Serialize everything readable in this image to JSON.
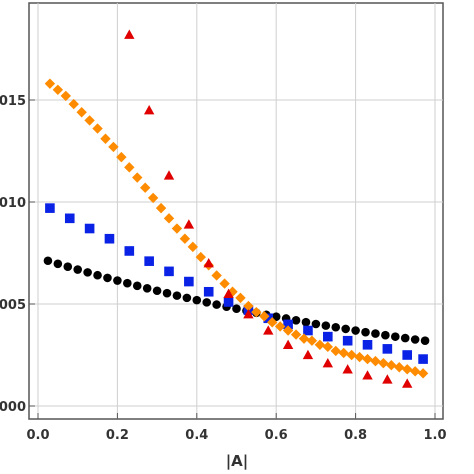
{
  "chart_data": {
    "type": "scatter",
    "title": "",
    "xlabel": "|A|",
    "ylabel": "",
    "xlim": [
      0,
      1.0
    ],
    "ylim": [
      0.0,
      0.0195
    ],
    "grid": true,
    "x_ticks": [
      {
        "value": 0.0,
        "label": "0.0"
      },
      {
        "value": 0.2,
        "label": "0.2"
      },
      {
        "value": 0.4,
        "label": "0.4"
      },
      {
        "value": 0.6,
        "label": "0.6"
      },
      {
        "value": 0.8,
        "label": "0.8"
      },
      {
        "value": 1.0,
        "label": "1.0"
      }
    ],
    "y_ticks": [
      {
        "value": 0.0,
        "label": "000"
      },
      {
        "value": 0.005,
        "label": "005"
      },
      {
        "value": 0.01,
        "label": "010"
      },
      {
        "value": 0.015,
        "label": "015"
      }
    ],
    "series": [
      {
        "marker": "circle",
        "color": "#000000",
        "x": [
          0.025,
          0.05,
          0.075,
          0.1,
          0.125,
          0.15,
          0.175,
          0.2,
          0.225,
          0.25,
          0.275,
          0.3,
          0.325,
          0.35,
          0.375,
          0.4,
          0.425,
          0.45,
          0.475,
          0.5,
          0.525,
          0.55,
          0.575,
          0.6,
          0.625,
          0.65,
          0.675,
          0.7,
          0.725,
          0.75,
          0.775,
          0.8,
          0.825,
          0.85,
          0.875,
          0.9,
          0.925,
          0.95,
          0.975
        ],
        "y": [
          0.00712,
          0.00697,
          0.00683,
          0.00669,
          0.00655,
          0.00641,
          0.00628,
          0.00615,
          0.00602,
          0.00589,
          0.00577,
          0.00565,
          0.00553,
          0.00541,
          0.0053,
          0.00519,
          0.00508,
          0.00497,
          0.00487,
          0.00477,
          0.00467,
          0.00457,
          0.00447,
          0.00438,
          0.00429,
          0.0042,
          0.00411,
          0.00402,
          0.00394,
          0.00386,
          0.00378,
          0.0037,
          0.00362,
          0.00355,
          0.00347,
          0.0034,
          0.00333,
          0.00326,
          0.0032
        ]
      },
      {
        "marker": "square",
        "color": "#0a22e6",
        "x": [
          0.03,
          0.08,
          0.13,
          0.18,
          0.23,
          0.28,
          0.33,
          0.38,
          0.43,
          0.48,
          0.53,
          0.58,
          0.63,
          0.68,
          0.73,
          0.78,
          0.83,
          0.88,
          0.93,
          0.97
        ],
        "y": [
          0.0097,
          0.0092,
          0.0087,
          0.0082,
          0.0076,
          0.0071,
          0.0066,
          0.0061,
          0.0056,
          0.0051,
          0.0047,
          0.0043,
          0.004,
          0.0037,
          0.0034,
          0.0032,
          0.003,
          0.0028,
          0.0025,
          0.0023
        ]
      },
      {
        "marker": "diamond",
        "color": "#ff8c00",
        "x": [
          0.03,
          0.05,
          0.07,
          0.09,
          0.11,
          0.13,
          0.15,
          0.17,
          0.19,
          0.21,
          0.23,
          0.25,
          0.27,
          0.29,
          0.31,
          0.33,
          0.35,
          0.37,
          0.39,
          0.41,
          0.43,
          0.45,
          0.47,
          0.49,
          0.51,
          0.53,
          0.55,
          0.57,
          0.59,
          0.61,
          0.63,
          0.65,
          0.67,
          0.69,
          0.71,
          0.73,
          0.75,
          0.77,
          0.79,
          0.81,
          0.83,
          0.85,
          0.87,
          0.89,
          0.91,
          0.93,
          0.95,
          0.97
        ],
        "y": [
          0.0158,
          0.0155,
          0.0152,
          0.0148,
          0.0144,
          0.014,
          0.0136,
          0.0131,
          0.0127,
          0.0122,
          0.0117,
          0.0112,
          0.0107,
          0.0102,
          0.0097,
          0.0092,
          0.0087,
          0.0082,
          0.0078,
          0.0073,
          0.0069,
          0.0064,
          0.006,
          0.0056,
          0.0053,
          0.0049,
          0.0046,
          0.0044,
          0.0041,
          0.0039,
          0.0037,
          0.0035,
          0.0033,
          0.0032,
          0.003,
          0.0029,
          0.0027,
          0.0026,
          0.0025,
          0.0024,
          0.0023,
          0.0022,
          0.0021,
          0.002,
          0.0019,
          0.0018,
          0.0017,
          0.0016
        ]
      },
      {
        "marker": "triangle",
        "color": "#e00000",
        "x": [
          0.23,
          0.28,
          0.33,
          0.38,
          0.43,
          0.48,
          0.53,
          0.58,
          0.63,
          0.68,
          0.73,
          0.78,
          0.83,
          0.88,
          0.93
        ],
        "y": [
          0.0182,
          0.0145,
          0.0113,
          0.0089,
          0.007,
          0.0055,
          0.0045,
          0.0037,
          0.003,
          0.0025,
          0.0021,
          0.0018,
          0.0015,
          0.0013,
          0.0011
        ]
      }
    ]
  }
}
